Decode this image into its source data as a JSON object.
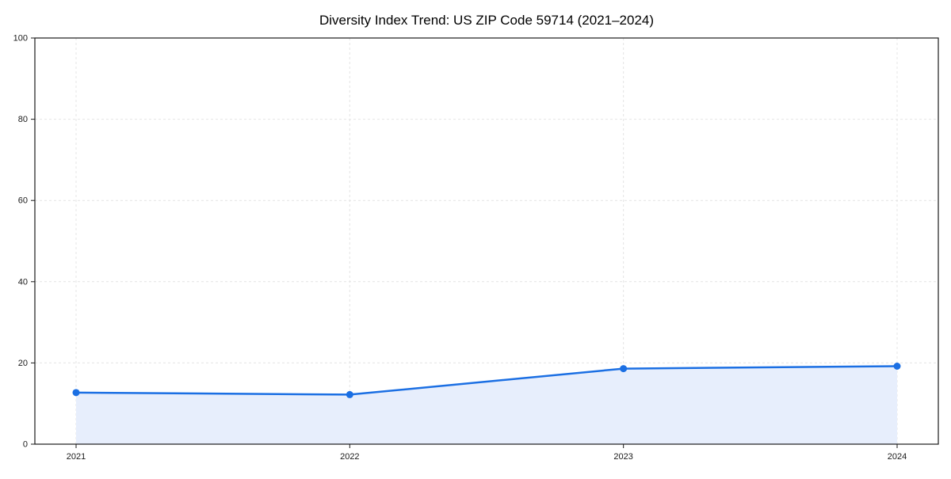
{
  "chart_data": {
    "type": "area",
    "title": "Diversity Index Trend: US ZIP Code 59714 (2021–2024)",
    "x": [
      "2021",
      "2022",
      "2023",
      "2024"
    ],
    "series": [
      {
        "name": "Diversity Index",
        "values": [
          12.7,
          12.2,
          18.6,
          19.2
        ]
      }
    ],
    "xlabel": "",
    "ylabel": "",
    "ylim": [
      0,
      100
    ],
    "y_ticks": [
      0,
      20,
      40,
      60,
      80,
      100
    ],
    "grid": true,
    "legend": "none",
    "styles": {
      "line_color": "#1b6fe3",
      "fill_color": "#e7eefc",
      "grid_color": "#e4e4e4",
      "spine_color": "#1a1a1a",
      "text_color": "#1a1a1a",
      "background": "#ffffff"
    }
  }
}
